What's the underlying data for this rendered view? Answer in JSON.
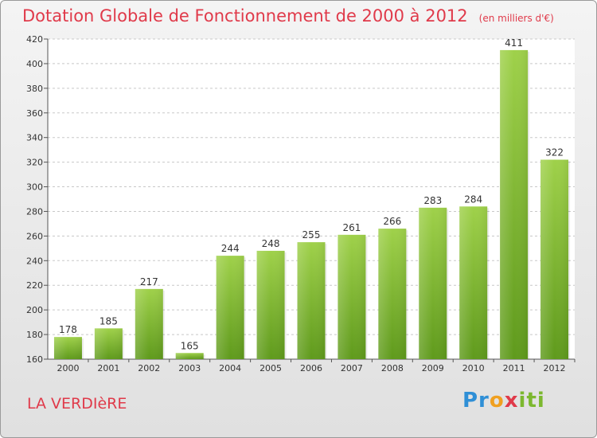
{
  "header": {
    "title": "Dotation Globale de Fonctionnement de 2000 à 2012",
    "unit": "(en milliers d'€)"
  },
  "footer": {
    "commune": "LA VERDIèRE",
    "logo_parts": [
      "Pr",
      "o",
      "x",
      "iti"
    ]
  },
  "colors": {
    "bar_light": "#9fd14a",
    "bar_dark": "#5f9a1c",
    "title": "#e03a4a",
    "grid": "#c8c8c8"
  },
  "chart_data": {
    "type": "bar",
    "title": "Dotation Globale de Fonctionnement de 2000 à 2012",
    "subtitle": "(en milliers d'€)",
    "categories": [
      "2000",
      "2001",
      "2002",
      "2003",
      "2004",
      "2005",
      "2006",
      "2007",
      "2008",
      "2009",
      "2010",
      "2011",
      "2012"
    ],
    "values": [
      178,
      185,
      217,
      165,
      244,
      248,
      255,
      261,
      266,
      283,
      284,
      411,
      322
    ],
    "ylim": [
      160,
      420
    ],
    "yticks": [
      160,
      180,
      200,
      220,
      240,
      260,
      280,
      300,
      320,
      340,
      360,
      380,
      400,
      420
    ],
    "grid": "horizontal dashed",
    "data_labels": true
  }
}
